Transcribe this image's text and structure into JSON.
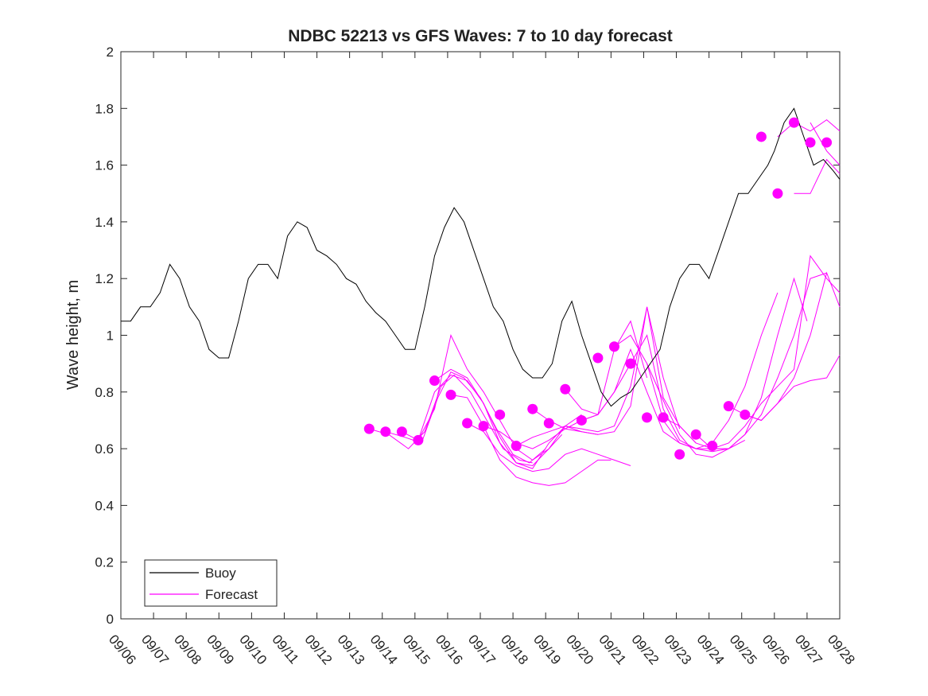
{
  "chart_data": {
    "type": "line",
    "title": "NDBC 52213 vs GFS Waves: 7 to 10 day forecast",
    "xlabel": "",
    "ylabel": "Wave height, m",
    "xlim": [
      0,
      22
    ],
    "ylim": [
      0,
      2
    ],
    "yticks": [
      0,
      0.2,
      0.4,
      0.6,
      0.8,
      1,
      1.2,
      1.4,
      1.6,
      1.8,
      2
    ],
    "ytick_labels": [
      "0",
      "0.2",
      "0.4",
      "0.6",
      "0.8",
      "1",
      "1.2",
      "1.4",
      "1.6",
      "1.8",
      "2"
    ],
    "xtick_labels": [
      "09/06",
      "09/07",
      "09/08",
      "09/09",
      "09/10",
      "09/11",
      "09/12",
      "09/13",
      "09/14",
      "09/15",
      "09/16",
      "09/17",
      "09/18",
      "09/19",
      "09/20",
      "09/21",
      "09/22",
      "09/23",
      "09/24",
      "09/25",
      "09/26",
      "09/27",
      "09/28"
    ],
    "legend": {
      "position": "bottom-left",
      "entries": [
        "Buoy",
        "Forecast"
      ]
    },
    "colors": {
      "buoy": "#000000",
      "forecast": "#ff00ff"
    },
    "series": [
      {
        "name": "Buoy",
        "x": [
          0,
          0.3,
          0.6,
          0.9,
          1.2,
          1.5,
          1.8,
          2.1,
          2.4,
          2.7,
          3.0,
          3.3,
          3.6,
          3.9,
          4.2,
          4.5,
          4.8,
          5.1,
          5.4,
          5.7,
          6.0,
          6.3,
          6.6,
          6.9,
          7.2,
          7.5,
          7.8,
          8.1,
          8.4,
          8.7,
          9.0,
          9.3,
          9.6,
          9.9,
          10.2,
          10.5,
          10.8,
          11.1,
          11.4,
          11.7,
          12.0,
          12.3,
          12.6,
          12.9,
          13.2,
          13.5,
          13.8,
          14.1,
          14.4,
          14.7,
          15.0,
          15.3,
          15.6,
          15.9,
          16.2,
          16.5,
          16.8,
          17.1,
          17.4,
          17.7,
          18.0,
          18.3,
          18.6,
          18.9,
          19.2,
          19.5,
          19.8,
          20.0,
          20.3,
          20.6,
          20.9,
          21.2,
          21.5,
          21.8,
          22.0
        ],
        "values": [
          1.05,
          1.05,
          1.1,
          1.1,
          1.15,
          1.25,
          1.2,
          1.1,
          1.05,
          0.95,
          0.92,
          0.92,
          1.05,
          1.2,
          1.25,
          1.25,
          1.2,
          1.35,
          1.4,
          1.38,
          1.3,
          1.28,
          1.25,
          1.2,
          1.18,
          1.12,
          1.08,
          1.05,
          1.0,
          0.95,
          0.95,
          1.1,
          1.28,
          1.38,
          1.45,
          1.4,
          1.3,
          1.2,
          1.1,
          1.05,
          0.95,
          0.88,
          0.85,
          0.85,
          0.9,
          1.05,
          1.12,
          1.0,
          0.9,
          0.8,
          0.75,
          0.78,
          0.8,
          0.85,
          0.9,
          0.95,
          1.1,
          1.2,
          1.25,
          1.25,
          1.2,
          1.3,
          1.4,
          1.5,
          1.5,
          1.55,
          1.6,
          1.65,
          1.75,
          1.8,
          1.7,
          1.6,
          1.62,
          1.58,
          1.55
        ]
      },
      {
        "name": "Forecast",
        "dots": {
          "x": [
            7.6,
            8.1,
            8.6,
            9.1,
            9.6,
            10.1,
            10.6,
            11.1,
            11.6,
            12.1,
            12.6,
            13.1,
            13.6,
            14.1,
            14.6,
            15.1,
            15.6,
            16.1,
            16.6,
            17.1,
            17.6,
            18.1,
            18.6,
            19.1,
            19.6,
            20.1,
            20.6,
            21.1,
            21.6
          ],
          "values": [
            0.67,
            0.66,
            0.66,
            0.63,
            0.84,
            0.79,
            0.69,
            0.68,
            0.72,
            0.61,
            0.74,
            0.69,
            0.81,
            0.7,
            0.92,
            0.96,
            0.9,
            0.71,
            0.71,
            0.58,
            0.65,
            0.61,
            0.75,
            0.72,
            1.7,
            1.5,
            1.75,
            1.68,
            1.68
          ]
        },
        "runs": [
          {
            "x": [
              7.6,
              8.2,
              8.8,
              9.3,
              9.8,
              10.2,
              10.7,
              11.2,
              11.7,
              12.2,
              12.6
            ],
            "values": [
              0.67,
              0.65,
              0.6,
              0.66,
              0.82,
              0.86,
              0.8,
              0.7,
              0.6,
              0.56,
              0.55
            ]
          },
          {
            "x": [
              8.1,
              8.7,
              9.2,
              9.7,
              10.1,
              10.5,
              11.0,
              11.5,
              12.0,
              12.5,
              13.0
            ],
            "values": [
              0.66,
              0.64,
              0.62,
              0.78,
              0.87,
              0.85,
              0.78,
              0.67,
              0.58,
              0.55,
              0.6
            ]
          },
          {
            "x": [
              8.6,
              9.1,
              9.6,
              10.1,
              10.6,
              11.1,
              11.6,
              12.1,
              12.6,
              13.1,
              13.5
            ],
            "values": [
              0.66,
              0.63,
              0.8,
              0.86,
              0.84,
              0.76,
              0.62,
              0.55,
              0.54,
              0.6,
              0.65
            ]
          },
          {
            "x": [
              9.1,
              9.6,
              10.1,
              10.6,
              11.1,
              11.6,
              12.1,
              12.6,
              13.1,
              13.6,
              14.1
            ],
            "values": [
              0.63,
              0.74,
              1.0,
              0.88,
              0.8,
              0.7,
              0.6,
              0.56,
              0.6,
              0.68,
              0.72
            ]
          },
          {
            "x": [
              9.6,
              10.1,
              10.6,
              11.1,
              11.6,
              12.1,
              12.6,
              13.1,
              13.6,
              14.1,
              14.6
            ],
            "values": [
              0.84,
              0.88,
              0.85,
              0.76,
              0.64,
              0.55,
              0.53,
              0.62,
              0.68,
              0.66,
              0.65
            ]
          },
          {
            "x": [
              10.1,
              10.6,
              11.1,
              11.6,
              12.1,
              12.6,
              13.1,
              13.6,
              14.1,
              14.6,
              15.0
            ],
            "values": [
              0.79,
              0.78,
              0.68,
              0.56,
              0.5,
              0.48,
              0.47,
              0.48,
              0.52,
              0.56,
              0.56
            ]
          },
          {
            "x": [
              10.6,
              11.1,
              11.6,
              12.1,
              12.6,
              13.1,
              13.6,
              14.1,
              14.6,
              15.1,
              15.6
            ],
            "values": [
              0.69,
              0.66,
              0.58,
              0.54,
              0.52,
              0.53,
              0.58,
              0.6,
              0.58,
              0.56,
              0.54
            ]
          },
          {
            "x": [
              11.1,
              11.6,
              12.1,
              12.6,
              13.1,
              13.6,
              14.1,
              14.6,
              15.1,
              15.6,
              16.1
            ],
            "values": [
              0.68,
              0.66,
              0.62,
              0.6,
              0.63,
              0.67,
              0.7,
              0.72,
              0.95,
              1.05,
              0.85
            ]
          },
          {
            "x": [
              12.1,
              12.6,
              13.1,
              13.6,
              14.1,
              14.6,
              15.1,
              15.6,
              16.1,
              16.6,
              17.1
            ],
            "values": [
              0.61,
              0.64,
              0.66,
              0.68,
              0.67,
              0.66,
              0.68,
              0.82,
              1.1,
              0.85,
              0.67
            ]
          },
          {
            "x": [
              12.6,
              13.1,
              13.6,
              14.1,
              14.6,
              15.1,
              15.6,
              16.1,
              16.6,
              17.1,
              17.6
            ],
            "values": [
              0.74,
              0.7,
              0.67,
              0.66,
              0.65,
              0.66,
              0.75,
              1.1,
              0.78,
              0.68,
              0.62
            ]
          },
          {
            "x": [
              13.6,
              14.1,
              14.6,
              15.1,
              15.6,
              16.1,
              16.6,
              17.1,
              17.6,
              18.1,
              18.6
            ],
            "values": [
              0.81,
              0.74,
              0.72,
              0.8,
              0.95,
              0.8,
              0.66,
              0.62,
              0.6,
              0.6,
              0.6
            ]
          },
          {
            "x": [
              14.1,
              14.6,
              15.1,
              15.6,
              16.1,
              16.6,
              17.1,
              17.6,
              18.1,
              18.6,
              19.1
            ],
            "values": [
              0.7,
              0.72,
              0.8,
              0.9,
              1.0,
              0.74,
              0.63,
              0.6,
              0.59,
              0.6,
              0.63
            ]
          },
          {
            "x": [
              15.1,
              15.6,
              16.1,
              16.6,
              17.1,
              17.6,
              18.1,
              18.6,
              19.1,
              19.6,
              20.1
            ],
            "values": [
              0.96,
              1.0,
              0.9,
              0.7,
              0.62,
              0.6,
              0.62,
              0.7,
              0.82,
              1.0,
              1.15
            ]
          },
          {
            "x": [
              16.1,
              16.6,
              17.1,
              17.6,
              18.1,
              18.6,
              19.1,
              19.6,
              20.1,
              20.6,
              21.0
            ],
            "values": [
              0.9,
              0.77,
              0.65,
              0.58,
              0.57,
              0.6,
              0.65,
              0.78,
              1.0,
              1.2,
              1.05
            ]
          },
          {
            "x": [
              16.6,
              17.1,
              17.6,
              18.1,
              18.6,
              19.1,
              19.6,
              20.1,
              20.6,
              21.1,
              21.6
            ],
            "values": [
              0.71,
              0.68,
              0.62,
              0.6,
              0.6,
              0.65,
              0.72,
              0.85,
              1.0,
              1.2,
              1.22
            ]
          },
          {
            "x": [
              17.6,
              18.1,
              18.6,
              19.1,
              19.6,
              20.1,
              20.6,
              21.1,
              21.6,
              22.0
            ],
            "values": [
              0.65,
              0.6,
              0.62,
              0.68,
              0.76,
              0.82,
              0.88,
              1.28,
              1.2,
              1.15
            ]
          },
          {
            "x": [
              18.6,
              19.1,
              19.6,
              20.1,
              20.6,
              21.1,
              21.6,
              22.0
            ],
            "values": [
              0.75,
              0.72,
              0.7,
              0.76,
              0.85,
              1.0,
              1.22,
              1.1
            ]
          },
          {
            "x": [
              19.1,
              19.6,
              20.1,
              20.6,
              21.1,
              21.6,
              22.0
            ],
            "values": [
              0.72,
              0.7,
              0.76,
              0.82,
              0.84,
              0.85,
              0.93
            ]
          },
          {
            "x": [
              20.1,
              20.6,
              21.1,
              21.6,
              22.0
            ],
            "values": [
              1.7,
              1.75,
              1.72,
              1.76,
              1.72
            ]
          },
          {
            "x": [
              20.6,
              21.1,
              21.6,
              22.0
            ],
            "values": [
              1.5,
              1.5,
              1.62,
              1.57
            ]
          },
          {
            "x": [
              21.1,
              21.6,
              22.0
            ],
            "values": [
              1.75,
              1.65,
              1.6
            ]
          }
        ]
      }
    ]
  }
}
